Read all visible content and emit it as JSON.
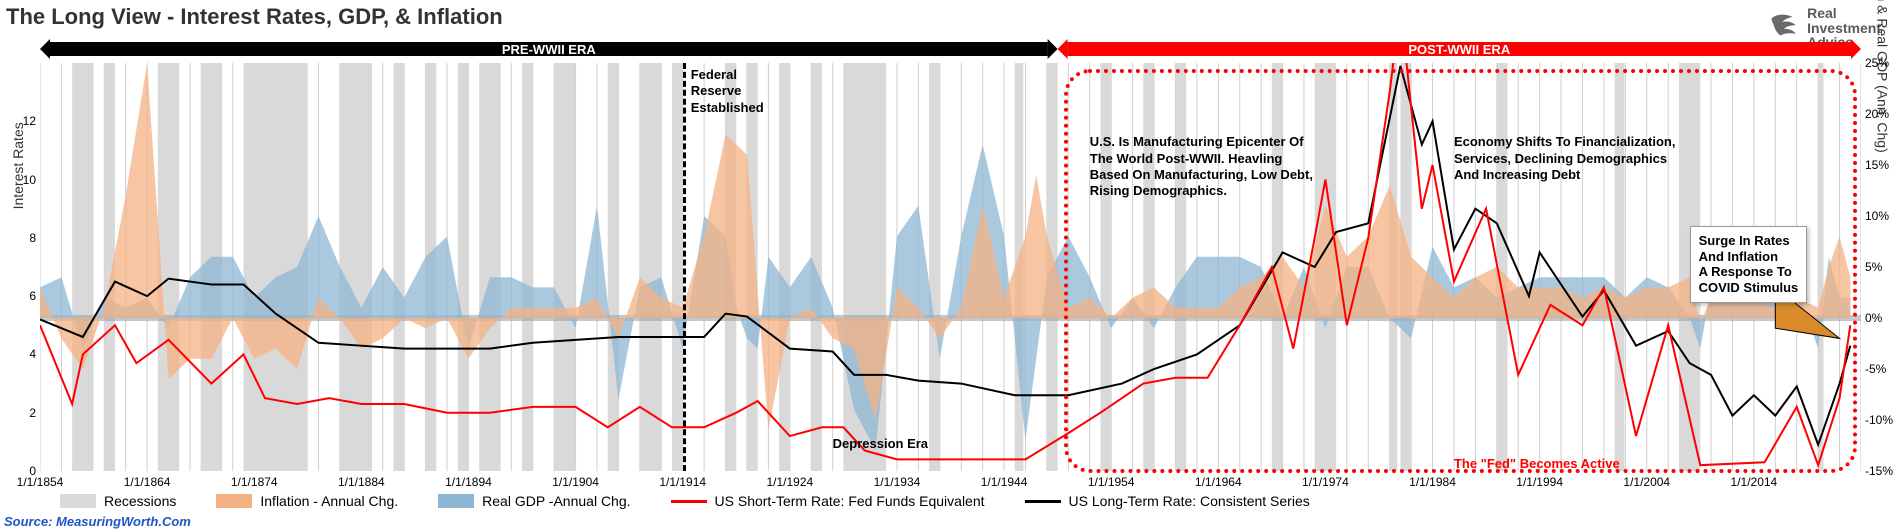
{
  "title": "The Long View - Interest Rates, GDP, & Inflation",
  "logo": {
    "line1": "Real",
    "line2": "Investment",
    "line3": "Advice"
  },
  "source": "Source: MeasuringWorth.Com",
  "chart": {
    "type": "line-area-combo",
    "background_color": "#ffffff",
    "grid_color": "#cfcfcf",
    "x": {
      "min": 1854,
      "max": 2024,
      "tick_years": [
        1854,
        1864,
        1874,
        1884,
        1894,
        1904,
        1914,
        1924,
        1934,
        1944,
        1954,
        1964,
        1974,
        1984,
        1994,
        2004,
        2014
      ],
      "tick_format_prefix": "1/1/"
    },
    "y_left": {
      "label": "Interest Rates",
      "min": 0,
      "max": 14,
      "ticks": [
        0,
        2,
        4,
        6,
        8,
        10,
        12
      ]
    },
    "y_right": {
      "label": "Inflation & Real GDP (Ann. Chg)",
      "min": -15,
      "max": 25,
      "ticks": [
        -15,
        -10,
        -5,
        0,
        5,
        10,
        15,
        20,
        25
      ],
      "suffix": "%"
    },
    "eras": {
      "pre": {
        "label": "PRE-WWII ERA",
        "start": 1854,
        "end": 1949,
        "bar_color": "#000000",
        "text_color": "#ffffff"
      },
      "post": {
        "label": "POST-WWII ERA",
        "start": 1949,
        "end": 2024,
        "bar_color": "#ff0000",
        "text_color": "#ffffff"
      }
    },
    "fed_line_year": 1914,
    "annotations": {
      "fed_established": "Federal\nReserve\nEstablished",
      "depression": "Depression Era",
      "post_wwii_text": "U.S. Is Manufacturing Epicenter Of\nThe World Post-WWII. Heavling\nBased On Manufacturing, Low Debt,\nRising Demographics.",
      "financialization": "Economy Shifts To Financialization,\nServices, Declining Demographics\nAnd Increasing Debt",
      "fed_active": "The \"Fed\" Becomes Active",
      "covid_callout": "Surge In Rates\nAnd Inflation\nA Response To\nCOVID Stimulus"
    },
    "legend": [
      {
        "label": "Recessions",
        "type": "box",
        "color": "#d9d9d9"
      },
      {
        "label": "Inflation - Annual Chg.",
        "type": "box",
        "color": "#f4b183"
      },
      {
        "label": "Real GDP -Annual Chg.",
        "type": "box",
        "color": "#8fb7d3"
      },
      {
        "label": "US Short-Term Rate: Fed Funds Equivalent",
        "type": "line",
        "color": "#ff0000"
      },
      {
        "label": "US Long-Term Rate: Consistent Series",
        "type": "line",
        "color": "#000000"
      }
    ],
    "colors": {
      "recession": "#d9d9d9",
      "inflation_fill": "#f4b183",
      "gdp_fill": "#8fb7d3",
      "short_rate_line": "#ff0000",
      "long_rate_line": "#000000",
      "zero_band": "#9fa3a6"
    },
    "line_width": 2,
    "recessions": [
      [
        1857,
        1859
      ],
      [
        1860,
        1861
      ],
      [
        1865,
        1867
      ],
      [
        1869,
        1871
      ],
      [
        1873,
        1879
      ],
      [
        1882,
        1885
      ],
      [
        1887,
        1888
      ],
      [
        1890,
        1891
      ],
      [
        1893,
        1894
      ],
      [
        1895,
        1897
      ],
      [
        1899,
        1900
      ],
      [
        1902,
        1904
      ],
      [
        1907,
        1908
      ],
      [
        1910,
        1912
      ],
      [
        1913,
        1914
      ],
      [
        1918,
        1919
      ],
      [
        1920,
        1921
      ],
      [
        1923,
        1924
      ],
      [
        1926,
        1927
      ],
      [
        1929,
        1933
      ],
      [
        1937,
        1938
      ],
      [
        1945,
        1945.8
      ],
      [
        1948,
        1949
      ],
      [
        1953,
        1954
      ],
      [
        1957,
        1958
      ],
      [
        1960,
        1961
      ],
      [
        1969,
        1970
      ],
      [
        1973,
        1975
      ],
      [
        1980,
        1980.7
      ],
      [
        1981,
        1982
      ],
      [
        1990,
        1991
      ],
      [
        2001,
        2001.9
      ],
      [
        2007,
        2009
      ],
      [
        2020,
        2020.5
      ]
    ],
    "long_rate": [
      [
        1854,
        5.2
      ],
      [
        1858,
        4.6
      ],
      [
        1861,
        6.5
      ],
      [
        1864,
        6.0
      ],
      [
        1866,
        6.6
      ],
      [
        1870,
        6.4
      ],
      [
        1873,
        6.4
      ],
      [
        1876,
        5.4
      ],
      [
        1880,
        4.4
      ],
      [
        1884,
        4.3
      ],
      [
        1888,
        4.2
      ],
      [
        1892,
        4.2
      ],
      [
        1896,
        4.2
      ],
      [
        1900,
        4.4
      ],
      [
        1904,
        4.5
      ],
      [
        1908,
        4.6
      ],
      [
        1912,
        4.6
      ],
      [
        1916,
        4.6
      ],
      [
        1918,
        5.4
      ],
      [
        1920,
        5.3
      ],
      [
        1924,
        4.2
      ],
      [
        1928,
        4.1
      ],
      [
        1930,
        3.3
      ],
      [
        1933,
        3.3
      ],
      [
        1936,
        3.1
      ],
      [
        1940,
        3.0
      ],
      [
        1945,
        2.6
      ],
      [
        1950,
        2.6
      ],
      [
        1955,
        3.0
      ],
      [
        1958,
        3.5
      ],
      [
        1962,
        4.0
      ],
      [
        1966,
        5.0
      ],
      [
        1970,
        7.5
      ],
      [
        1973,
        7.0
      ],
      [
        1975,
        8.2
      ],
      [
        1978,
        8.5
      ],
      [
        1981,
        13.9
      ],
      [
        1983,
        11.2
      ],
      [
        1984,
        12.0
      ],
      [
        1986,
        7.6
      ],
      [
        1988,
        9.0
      ],
      [
        1990,
        8.5
      ],
      [
        1993,
        6.0
      ],
      [
        1994,
        7.5
      ],
      [
        1998,
        5.3
      ],
      [
        2000,
        6.2
      ],
      [
        2003,
        4.3
      ],
      [
        2006,
        4.8
      ],
      [
        2008,
        3.7
      ],
      [
        2010,
        3.3
      ],
      [
        2012,
        1.9
      ],
      [
        2014,
        2.6
      ],
      [
        2016,
        1.9
      ],
      [
        2018,
        2.9
      ],
      [
        2020,
        0.9
      ],
      [
        2022,
        3.0
      ],
      [
        2023,
        4.3
      ]
    ],
    "short_rate": [
      [
        1854,
        5.0
      ],
      [
        1857,
        2.3
      ],
      [
        1858,
        4.0
      ],
      [
        1861,
        5.0
      ],
      [
        1863,
        3.7
      ],
      [
        1866,
        4.5
      ],
      [
        1870,
        3.0
      ],
      [
        1873,
        4.0
      ],
      [
        1875,
        2.5
      ],
      [
        1878,
        2.3
      ],
      [
        1881,
        2.5
      ],
      [
        1884,
        2.3
      ],
      [
        1888,
        2.3
      ],
      [
        1892,
        2.0
      ],
      [
        1896,
        2.0
      ],
      [
        1900,
        2.2
      ],
      [
        1904,
        2.2
      ],
      [
        1907,
        1.5
      ],
      [
        1910,
        2.2
      ],
      [
        1913,
        1.5
      ],
      [
        1916,
        1.5
      ],
      [
        1919,
        2.0
      ],
      [
        1921,
        2.4
      ],
      [
        1924,
        1.2
      ],
      [
        1927,
        1.5
      ],
      [
        1929,
        1.5
      ],
      [
        1931,
        0.7
      ],
      [
        1934,
        0.4
      ],
      [
        1938,
        0.4
      ],
      [
        1942,
        0.4
      ],
      [
        1946,
        0.4
      ],
      [
        1950,
        1.3
      ],
      [
        1953,
        2.0
      ],
      [
        1957,
        3.0
      ],
      [
        1960,
        3.2
      ],
      [
        1963,
        3.2
      ],
      [
        1966,
        5.0
      ],
      [
        1969,
        7.0
      ],
      [
        1971,
        4.2
      ],
      [
        1973,
        8.0
      ],
      [
        1974,
        10.0
      ],
      [
        1976,
        5.0
      ],
      [
        1978,
        8.0
      ],
      [
        1980,
        13.0
      ],
      [
        1981,
        16.0
      ],
      [
        1983,
        9.0
      ],
      [
        1984,
        10.5
      ],
      [
        1986,
        6.5
      ],
      [
        1989,
        9.0
      ],
      [
        1992,
        3.3
      ],
      [
        1995,
        5.7
      ],
      [
        1998,
        5.0
      ],
      [
        2000,
        6.3
      ],
      [
        2003,
        1.2
      ],
      [
        2006,
        5.0
      ],
      [
        2009,
        0.2
      ],
      [
        2015,
        0.3
      ],
      [
        2018,
        2.2
      ],
      [
        2020,
        0.2
      ],
      [
        2022,
        2.5
      ],
      [
        2023,
        5.0
      ]
    ],
    "inflation": [
      [
        1854,
        3
      ],
      [
        1856,
        -2
      ],
      [
        1858,
        -5
      ],
      [
        1860,
        1
      ],
      [
        1862,
        12
      ],
      [
        1864,
        25
      ],
      [
        1866,
        -6
      ],
      [
        1868,
        -4
      ],
      [
        1870,
        -4
      ],
      [
        1872,
        0
      ],
      [
        1874,
        -4
      ],
      [
        1876,
        -3
      ],
      [
        1878,
        -5
      ],
      [
        1880,
        2
      ],
      [
        1882,
        0
      ],
      [
        1884,
        -3
      ],
      [
        1886,
        -2
      ],
      [
        1888,
        0
      ],
      [
        1890,
        -1
      ],
      [
        1892,
        0
      ],
      [
        1894,
        -4
      ],
      [
        1896,
        -1
      ],
      [
        1898,
        1
      ],
      [
        1900,
        1
      ],
      [
        1902,
        1
      ],
      [
        1904,
        1
      ],
      [
        1906,
        2
      ],
      [
        1908,
        -2
      ],
      [
        1910,
        4
      ],
      [
        1912,
        2
      ],
      [
        1914,
        1
      ],
      [
        1916,
        8
      ],
      [
        1918,
        18
      ],
      [
        1920,
        16
      ],
      [
        1922,
        -11
      ],
      [
        1924,
        0
      ],
      [
        1926,
        1
      ],
      [
        1928,
        -2
      ],
      [
        1930,
        -3
      ],
      [
        1932,
        -10
      ],
      [
        1934,
        3
      ],
      [
        1936,
        1
      ],
      [
        1938,
        -2
      ],
      [
        1940,
        1
      ],
      [
        1942,
        11
      ],
      [
        1944,
        2
      ],
      [
        1946,
        8
      ],
      [
        1947,
        14
      ],
      [
        1948,
        8
      ],
      [
        1950,
        1
      ],
      [
        1952,
        2
      ],
      [
        1954,
        0
      ],
      [
        1956,
        2
      ],
      [
        1958,
        3
      ],
      [
        1960,
        1
      ],
      [
        1962,
        1
      ],
      [
        1964,
        1
      ],
      [
        1966,
        3
      ],
      [
        1968,
        4
      ],
      [
        1970,
        6
      ],
      [
        1972,
        3
      ],
      [
        1974,
        11
      ],
      [
        1976,
        6
      ],
      [
        1978,
        8
      ],
      [
        1980,
        13
      ],
      [
        1982,
        6
      ],
      [
        1984,
        4
      ],
      [
        1986,
        2
      ],
      [
        1988,
        4
      ],
      [
        1990,
        5
      ],
      [
        1992,
        3
      ],
      [
        1994,
        3
      ],
      [
        1996,
        3
      ],
      [
        1998,
        2
      ],
      [
        2000,
        3
      ],
      [
        2002,
        2
      ],
      [
        2004,
        3
      ],
      [
        2006,
        3
      ],
      [
        2008,
        4
      ],
      [
        2009,
        -0.5
      ],
      [
        2010,
        2
      ],
      [
        2012,
        2
      ],
      [
        2014,
        2
      ],
      [
        2016,
        1
      ],
      [
        2018,
        2
      ],
      [
        2020,
        1
      ],
      [
        2021,
        5
      ],
      [
        2022,
        8
      ],
      [
        2023,
        4
      ]
    ],
    "gdp": [
      [
        1854,
        3
      ],
      [
        1856,
        4
      ],
      [
        1858,
        -3
      ],
      [
        1860,
        2
      ],
      [
        1862,
        1
      ],
      [
        1864,
        2
      ],
      [
        1866,
        -1
      ],
      [
        1868,
        4
      ],
      [
        1870,
        6
      ],
      [
        1872,
        6
      ],
      [
        1874,
        2
      ],
      [
        1876,
        4
      ],
      [
        1878,
        5
      ],
      [
        1880,
        10
      ],
      [
        1882,
        5
      ],
      [
        1884,
        1
      ],
      [
        1886,
        5
      ],
      [
        1888,
        2
      ],
      [
        1890,
        6
      ],
      [
        1892,
        8
      ],
      [
        1894,
        -3
      ],
      [
        1896,
        4
      ],
      [
        1898,
        4
      ],
      [
        1900,
        3
      ],
      [
        1902,
        3
      ],
      [
        1904,
        -1
      ],
      [
        1906,
        11
      ],
      [
        1908,
        -8
      ],
      [
        1910,
        3
      ],
      [
        1912,
        4
      ],
      [
        1914,
        -3
      ],
      [
        1916,
        10
      ],
      [
        1918,
        8
      ],
      [
        1919,
        1
      ],
      [
        1920,
        -2
      ],
      [
        1921,
        -3
      ],
      [
        1922,
        6
      ],
      [
        1924,
        3
      ],
      [
        1926,
        6
      ],
      [
        1928,
        1
      ],
      [
        1930,
        -9
      ],
      [
        1932,
        -13
      ],
      [
        1934,
        8
      ],
      [
        1936,
        11
      ],
      [
        1938,
        -4
      ],
      [
        1940,
        8
      ],
      [
        1942,
        17
      ],
      [
        1944,
        8
      ],
      [
        1946,
        -12
      ],
      [
        1948,
        4
      ],
      [
        1950,
        8
      ],
      [
        1952,
        4
      ],
      [
        1954,
        -1
      ],
      [
        1956,
        2
      ],
      [
        1958,
        -1
      ],
      [
        1960,
        3
      ],
      [
        1962,
        6
      ],
      [
        1964,
        6
      ],
      [
        1966,
        6
      ],
      [
        1968,
        5
      ],
      [
        1970,
        0
      ],
      [
        1972,
        5
      ],
      [
        1974,
        -1
      ],
      [
        1976,
        5
      ],
      [
        1978,
        5
      ],
      [
        1980,
        0
      ],
      [
        1982,
        -2
      ],
      [
        1984,
        7
      ],
      [
        1986,
        3
      ],
      [
        1988,
        4
      ],
      [
        1990,
        2
      ],
      [
        1992,
        3
      ],
      [
        1994,
        4
      ],
      [
        1996,
        4
      ],
      [
        1998,
        4
      ],
      [
        2000,
        4
      ],
      [
        2002,
        2
      ],
      [
        2004,
        4
      ],
      [
        2006,
        3
      ],
      [
        2008,
        0
      ],
      [
        2009,
        -3
      ],
      [
        2010,
        3
      ],
      [
        2012,
        2
      ],
      [
        2014,
        2
      ],
      [
        2016,
        2
      ],
      [
        2018,
        3
      ],
      [
        2020,
        -3
      ],
      [
        2021,
        6
      ],
      [
        2022,
        2
      ],
      [
        2023,
        2
      ]
    ]
  }
}
